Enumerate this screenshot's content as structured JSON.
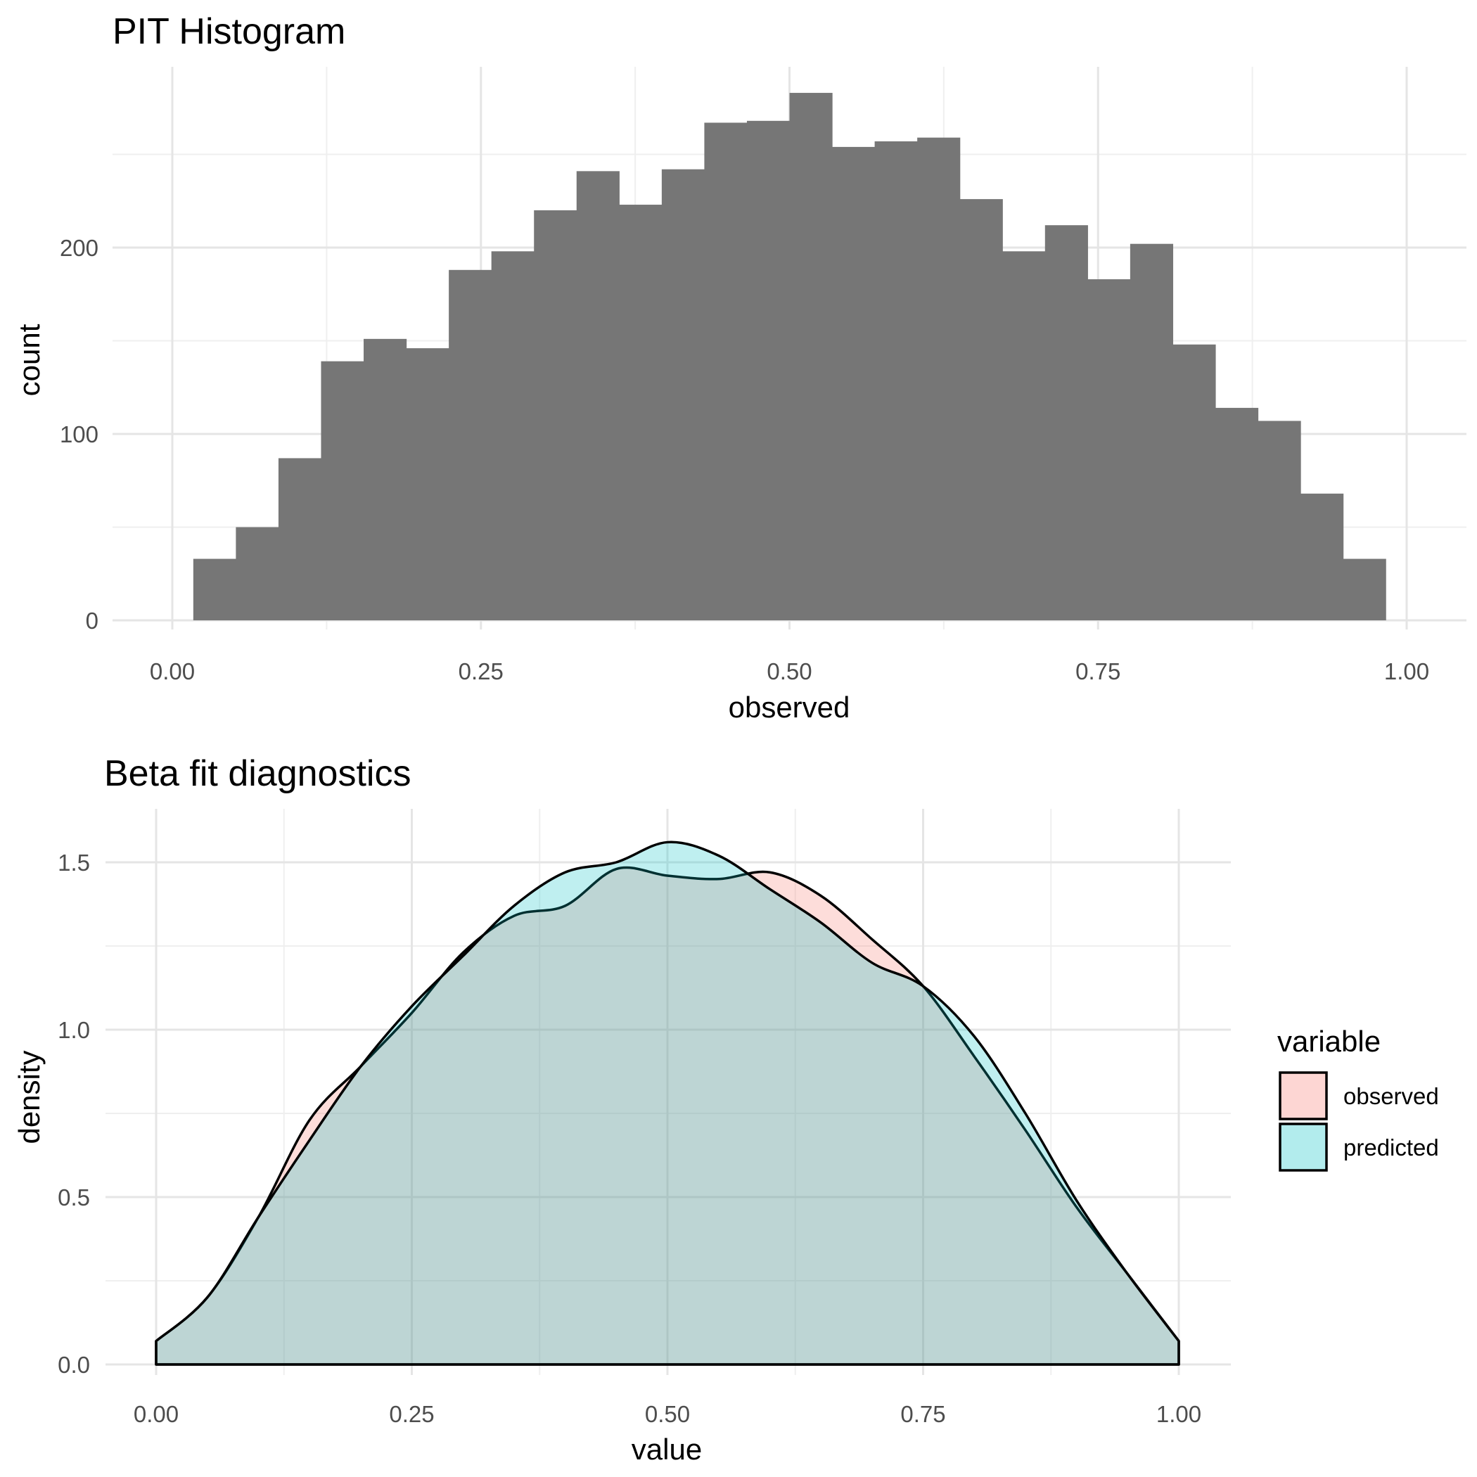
{
  "chart_data": [
    {
      "type": "bar",
      "title": "PIT Histogram",
      "xlabel": "observed",
      "ylabel": "count",
      "xlim": [
        0,
        1
      ],
      "ylim": [
        0,
        290
      ],
      "grid": true,
      "x_ticks": [
        "0.00",
        "0.25",
        "0.50",
        "0.75",
        "1.00"
      ],
      "y_ticks": [
        "0",
        "100",
        "200"
      ],
      "bins": [
        {
          "x": 0.017,
          "w": 0.0345,
          "value": 33
        },
        {
          "x": 0.0515,
          "w": 0.0345,
          "value": 50
        },
        {
          "x": 0.086,
          "w": 0.0345,
          "value": 87
        },
        {
          "x": 0.1205,
          "w": 0.0345,
          "value": 139
        },
        {
          "x": 0.155,
          "w": 0.0345,
          "value": 151
        },
        {
          "x": 0.1895,
          "w": 0.0345,
          "value": 146
        },
        {
          "x": 0.224,
          "w": 0.0345,
          "value": 188
        },
        {
          "x": 0.2585,
          "w": 0.0345,
          "value": 198
        },
        {
          "x": 0.293,
          "w": 0.0345,
          "value": 220
        },
        {
          "x": 0.3275,
          "w": 0.0345,
          "value": 241
        },
        {
          "x": 0.362,
          "w": 0.0345,
          "value": 223
        },
        {
          "x": 0.3965,
          "w": 0.0345,
          "value": 242
        },
        {
          "x": 0.431,
          "w": 0.0345,
          "value": 267
        },
        {
          "x": 0.4655,
          "w": 0.0345,
          "value": 268
        },
        {
          "x": 0.5,
          "w": 0.0345,
          "value": 283
        },
        {
          "x": 0.5345,
          "w": 0.0345,
          "value": 254
        },
        {
          "x": 0.569,
          "w": 0.0345,
          "value": 257
        },
        {
          "x": 0.6035,
          "w": 0.0345,
          "value": 259
        },
        {
          "x": 0.638,
          "w": 0.0345,
          "value": 226
        },
        {
          "x": 0.6725,
          "w": 0.0345,
          "value": 198
        },
        {
          "x": 0.707,
          "w": 0.0345,
          "value": 212
        },
        {
          "x": 0.7415,
          "w": 0.0345,
          "value": 183
        },
        {
          "x": 0.776,
          "w": 0.0345,
          "value": 202
        },
        {
          "x": 0.8105,
          "w": 0.0345,
          "value": 148
        },
        {
          "x": 0.845,
          "w": 0.0345,
          "value": 114
        },
        {
          "x": 0.8795,
          "w": 0.0345,
          "value": 107
        },
        {
          "x": 0.914,
          "w": 0.0345,
          "value": 68
        },
        {
          "x": 0.9485,
          "w": 0.0345,
          "value": 33
        }
      ],
      "bar_color": "#767676"
    },
    {
      "type": "area",
      "title": "Beta fit diagnostics",
      "xlabel": "value",
      "ylabel": "density",
      "xlim": [
        0,
        1
      ],
      "ylim": [
        0,
        1.6
      ],
      "grid": true,
      "legend_position": "right",
      "legend_title": "variable",
      "x_ticks": [
        "0.00",
        "0.25",
        "0.50",
        "0.75",
        "1.00"
      ],
      "y_ticks": [
        "0.0",
        "0.5",
        "1.0",
        "1.5"
      ],
      "series": [
        {
          "name": "observed",
          "color": "#F8766D",
          "x": [
            0,
            0.05,
            0.1,
            0.15,
            0.2,
            0.25,
            0.3,
            0.35,
            0.4,
            0.45,
            0.5,
            0.55,
            0.6,
            0.65,
            0.7,
            0.75,
            0.8,
            0.85,
            0.9,
            0.95,
            1
          ],
          "values": [
            0.07,
            0.2,
            0.44,
            0.73,
            0.89,
            1.05,
            1.23,
            1.34,
            1.37,
            1.48,
            1.46,
            1.45,
            1.47,
            1.4,
            1.27,
            1.13,
            0.92,
            0.7,
            0.47,
            0.27,
            0.07
          ]
        },
        {
          "name": "predicted",
          "color": "#00BFC4",
          "x": [
            0,
            0.05,
            0.1,
            0.15,
            0.2,
            0.25,
            0.3,
            0.35,
            0.4,
            0.45,
            0.5,
            0.55,
            0.6,
            0.65,
            0.7,
            0.75,
            0.8,
            0.85,
            0.9,
            0.95,
            1
          ],
          "values": [
            0.07,
            0.2,
            0.44,
            0.67,
            0.89,
            1.07,
            1.22,
            1.37,
            1.47,
            1.5,
            1.56,
            1.52,
            1.42,
            1.32,
            1.2,
            1.13,
            0.98,
            0.75,
            0.49,
            0.27,
            0.07
          ]
        }
      ]
    }
  ]
}
